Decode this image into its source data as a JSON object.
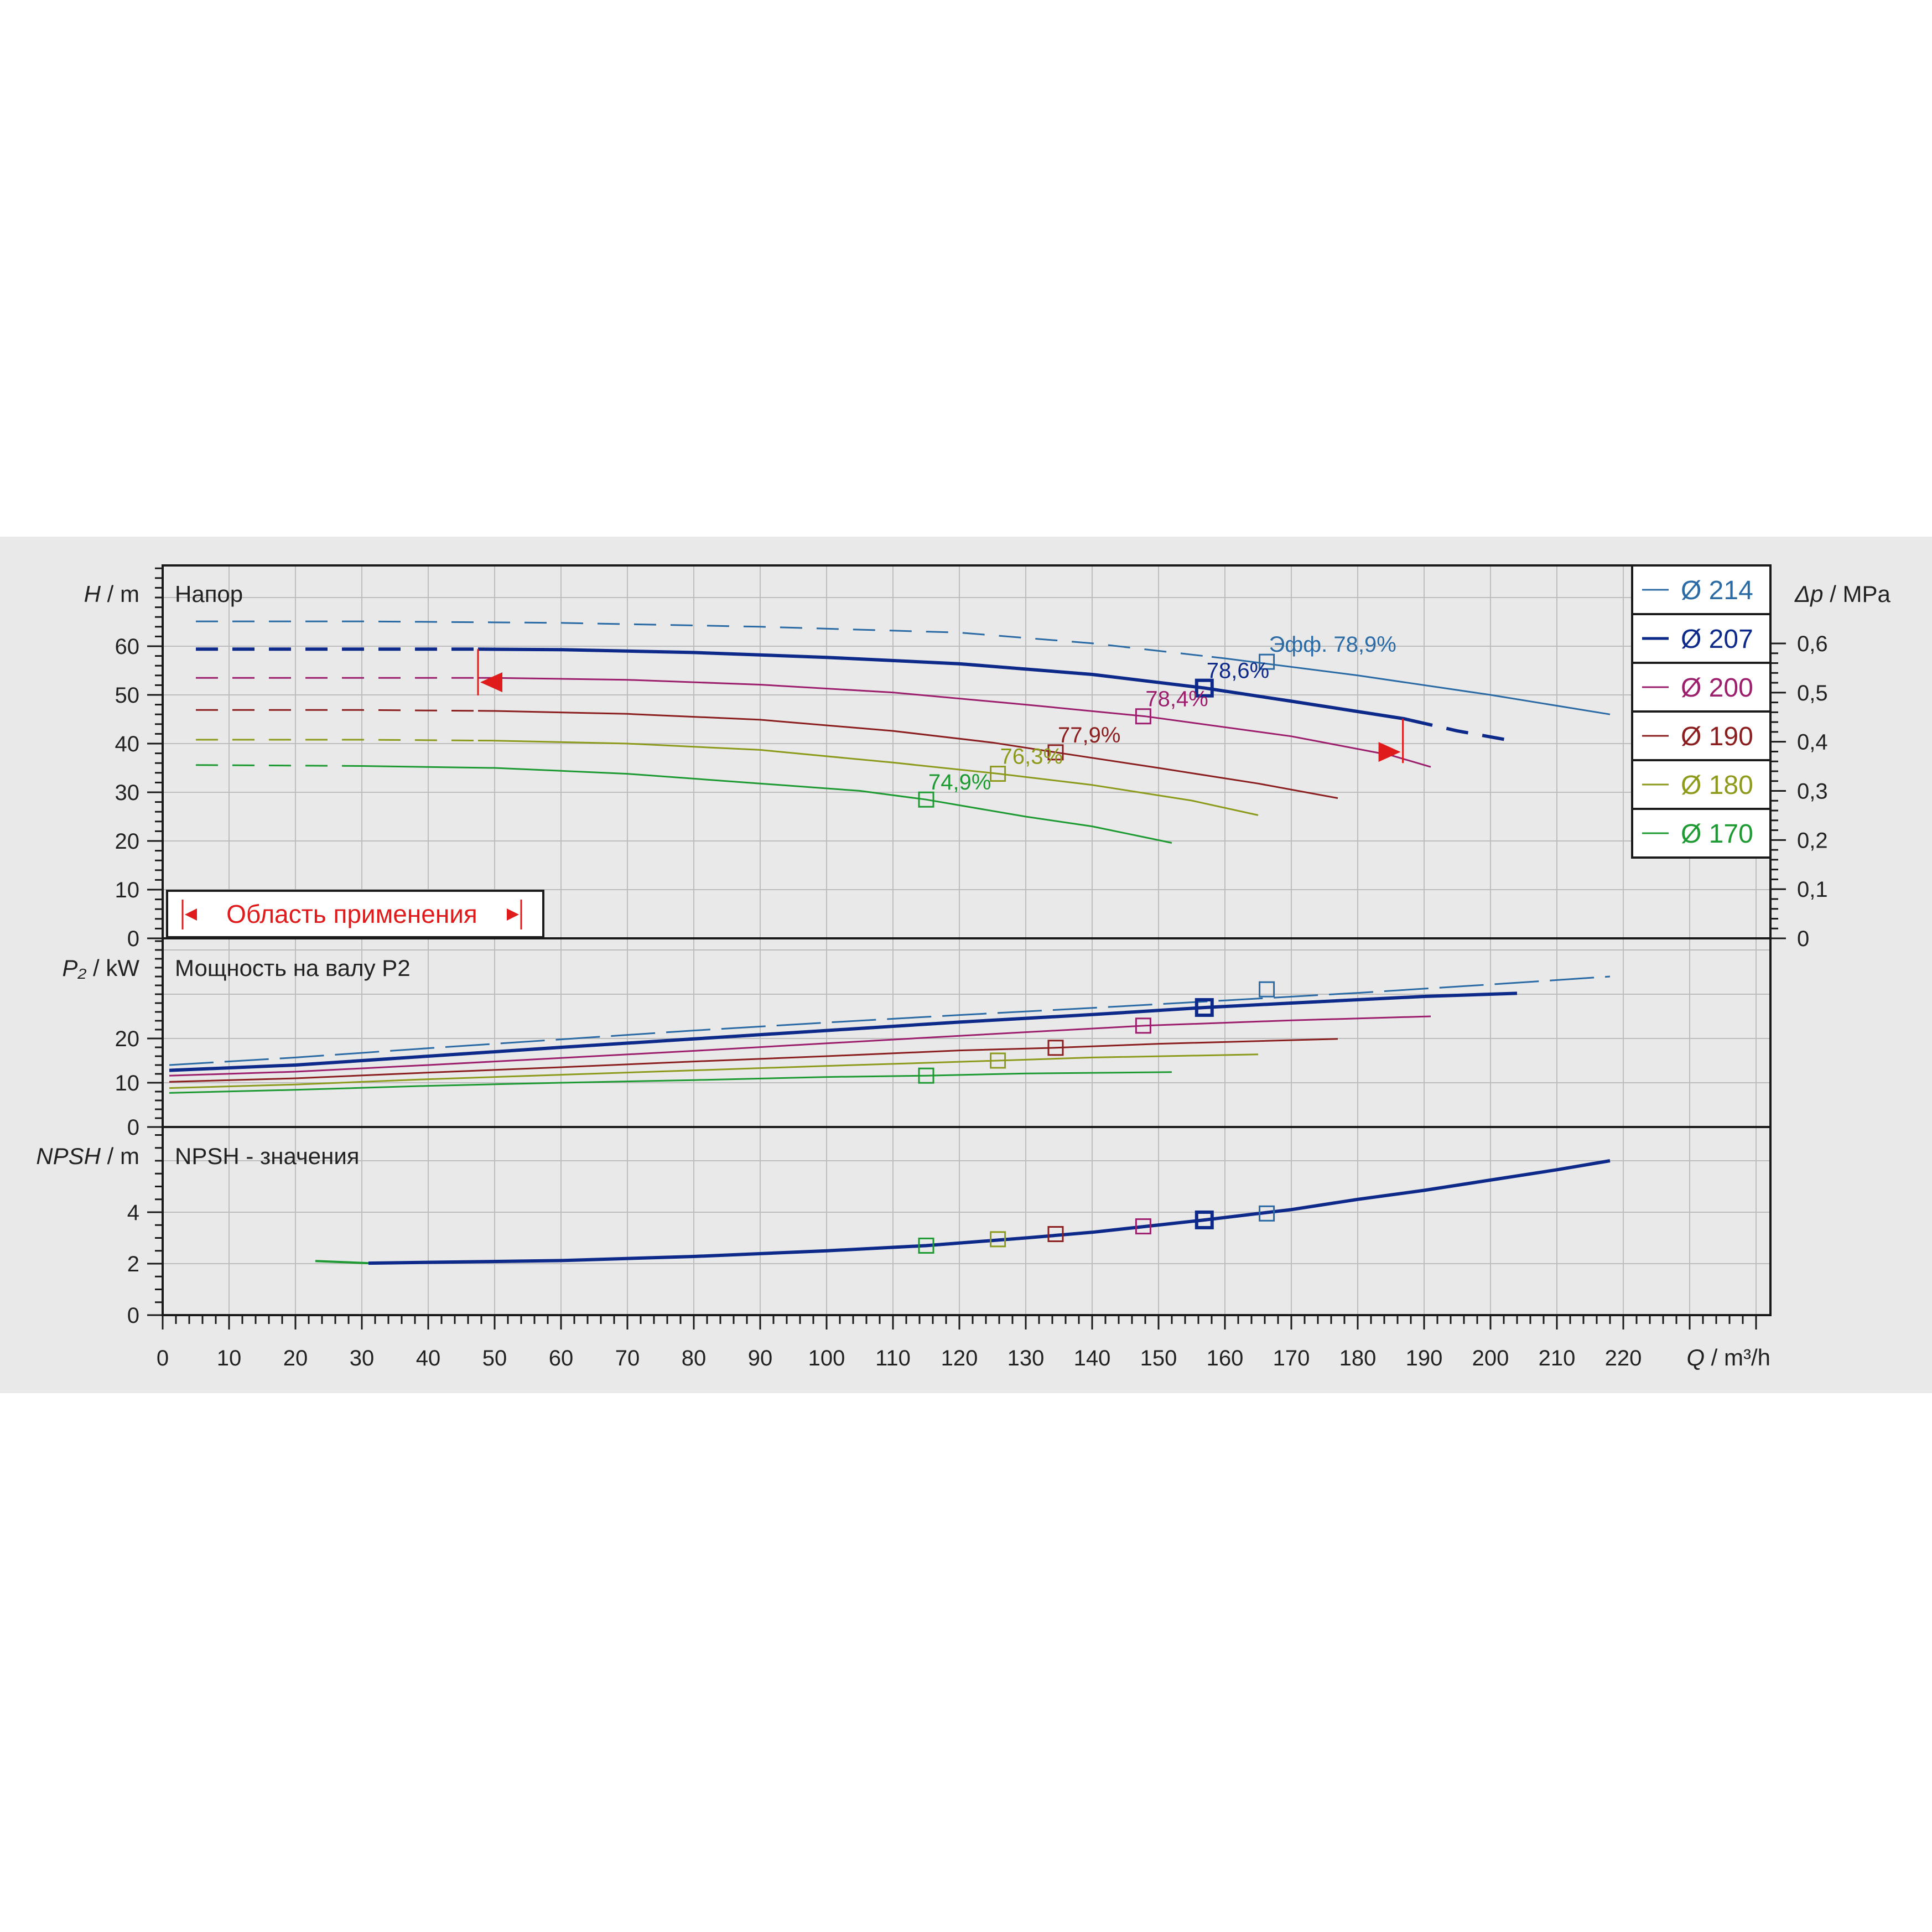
{
  "chart_data": {
    "type": "line",
    "x_axis": {
      "label_symbol": "Q",
      "label_unit": " / m³/h",
      "range": [
        0,
        240
      ],
      "ticks": [
        0,
        10,
        20,
        30,
        40,
        50,
        60,
        70,
        80,
        90,
        100,
        110,
        120,
        130,
        140,
        150,
        160,
        170,
        180,
        190,
        200,
        210,
        220
      ]
    },
    "legend": {
      "placement": "top-right",
      "items": [
        {
          "label": "Ø 214",
          "color": "#2a6aa5"
        },
        {
          "label": "Ø 207",
          "color": "#0d2a8a"
        },
        {
          "label": "Ø 200",
          "color": "#9c1f6e"
        },
        {
          "label": "Ø 190",
          "color": "#8b1f1f"
        },
        {
          "label": "Ø 180",
          "color": "#8e9a1c"
        },
        {
          "label": "Ø 170",
          "color": "#1e9a32"
        }
      ]
    },
    "head_panel": {
      "title": "Напор",
      "y_label_symbol": "H",
      "y_label_unit": " / m",
      "y_range": [
        0,
        70
      ],
      "y_ticks": [
        0,
        10,
        20,
        30,
        40,
        50,
        60
      ],
      "right_label_symbol": "Δp",
      "right_label_unit": " / MPa",
      "right_ticks": [
        "0",
        "0,1",
        "0,2",
        "0,3",
        "0,4",
        "0,5",
        "0,6"
      ],
      "eff_prefix": "Эфф.",
      "application_area_label": "Область применения",
      "application_markers": {
        "left": {
          "q": 47.5,
          "h1": 59.4,
          "h2": 49.9
        },
        "right": {
          "q": 186.8,
          "h1": 45.1,
          "h2": 36.0
        }
      },
      "series": [
        {
          "name": "Ø 214",
          "dashed_to": 158,
          "points": [
            [
              5,
              65.1
            ],
            [
              30,
              65.1
            ],
            [
              60,
              64.8
            ],
            [
              90,
              64.0
            ],
            [
              120,
              62.8
            ],
            [
              140,
              60.6
            ],
            [
              160,
              57.5
            ],
            [
              180,
              54.0
            ],
            [
              200,
              50.0
            ],
            [
              218,
              46.0
            ]
          ],
          "bep": [
            166.3,
            56.8
          ],
          "bep_label": "78,9%"
        },
        {
          "name": "Ø 207",
          "dashed_to": 47.5,
          "dashed_after": 188,
          "points": [
            [
              5,
              59.4
            ],
            [
              30,
              59.4
            ],
            [
              47.5,
              59.4
            ],
            [
              60,
              59.3
            ],
            [
              80,
              58.7
            ],
            [
              100,
              57.7
            ],
            [
              120,
              56.4
            ],
            [
              140,
              54.2
            ],
            [
              157,
              51.4
            ],
            [
              170,
              48.7
            ],
            [
              187,
              45.1
            ],
            [
              195,
              42.6
            ],
            [
              204,
              40.4
            ]
          ],
          "bep": [
            156.9,
            51.4
          ],
          "bep_label": "78,6%"
        },
        {
          "name": "Ø 200",
          "dashed_to": 47.5,
          "points": [
            [
              5,
              53.5
            ],
            [
              30,
              53.5
            ],
            [
              50,
              53.5
            ],
            [
              70,
              53.1
            ],
            [
              90,
              52.1
            ],
            [
              110,
              50.5
            ],
            [
              130,
              48.0
            ],
            [
              148,
              45.6
            ],
            [
              170,
              41.5
            ],
            [
              185,
              37.6
            ],
            [
              191,
              35.2
            ]
          ],
          "bep": [
            147.7,
            45.6
          ],
          "bep_label": "78,4%"
        },
        {
          "name": "Ø 190",
          "dashed_to": 47.5,
          "points": [
            [
              5,
              46.9
            ],
            [
              30,
              46.9
            ],
            [
              50,
              46.7
            ],
            [
              70,
              46.1
            ],
            [
              90,
              44.9
            ],
            [
              110,
              42.6
            ],
            [
              125,
              40.2
            ],
            [
              134.5,
              38.2
            ],
            [
              150,
              35.0
            ],
            [
              165,
              31.8
            ],
            [
              177,
              28.8
            ]
          ],
          "bep": [
            134.5,
            38.2
          ],
          "bep_label": "77,9%"
        },
        {
          "name": "Ø 180",
          "dashed_to": 47.5,
          "points": [
            [
              5,
              40.8
            ],
            [
              30,
              40.8
            ],
            [
              50,
              40.6
            ],
            [
              70,
              40.0
            ],
            [
              90,
              38.7
            ],
            [
              110,
              36.1
            ],
            [
              126,
              33.8
            ],
            [
              140,
              31.5
            ],
            [
              155,
              28.3
            ],
            [
              165,
              25.3
            ]
          ],
          "bep": [
            125.8,
            33.8
          ],
          "bep_label": "76,3%"
        },
        {
          "name": "Ø 170",
          "dashed_to": 30,
          "points": [
            [
              5,
              35.6
            ],
            [
              30,
              35.4
            ],
            [
              50,
              35.0
            ],
            [
              70,
              33.8
            ],
            [
              90,
              31.8
            ],
            [
              105,
              30.3
            ],
            [
              115,
              28.5
            ],
            [
              130,
              25.0
            ],
            [
              140,
              23.0
            ],
            [
              152,
              19.6
            ]
          ],
          "bep": [
            115.0,
            28.5
          ],
          "bep_label": "74,9%"
        }
      ]
    },
    "power_panel": {
      "title": "Мощность на валу P2",
      "y_label_symbol": "P₂",
      "y_label_unit": " / kW",
      "y_range": [
        0,
        40
      ],
      "y_ticks": [
        0,
        10,
        20
      ],
      "series": [
        {
          "name": "Ø 214",
          "points": [
            [
              1,
              14.0
            ],
            [
              20,
              15.7
            ],
            [
              40,
              17.8
            ],
            [
              60,
              19.8
            ],
            [
              80,
              21.8
            ],
            [
              100,
              23.6
            ],
            [
              120,
              25.3
            ],
            [
              140,
              26.9
            ],
            [
              160,
              28.6
            ],
            [
              180,
              30.3
            ],
            [
              200,
              32.2
            ],
            [
              218,
              34.0
            ]
          ],
          "bep": [
            166.3,
            31.1
          ]
        },
        {
          "name": "Ø 207",
          "points": [
            [
              1,
              12.8
            ],
            [
              20,
              14.0
            ],
            [
              40,
              16.0
            ],
            [
              60,
              18.0
            ],
            [
              80,
              19.9
            ],
            [
              100,
              21.8
            ],
            [
              120,
              23.7
            ],
            [
              140,
              25.4
            ],
            [
              157,
              27.0
            ],
            [
              170,
              28.0
            ],
            [
              190,
              29.5
            ],
            [
              204,
              30.2
            ]
          ],
          "bep": [
            156.9,
            27.0
          ]
        },
        {
          "name": "Ø 200",
          "points": [
            [
              1,
              11.6
            ],
            [
              20,
              12.5
            ],
            [
              40,
              14.0
            ],
            [
              60,
              15.6
            ],
            [
              80,
              17.2
            ],
            [
              100,
              18.9
            ],
            [
              120,
              20.6
            ],
            [
              148,
              22.9
            ],
            [
              170,
              24.1
            ],
            [
              191,
              25.0
            ]
          ],
          "bep": [
            147.7,
            22.9
          ]
        },
        {
          "name": "Ø 190",
          "points": [
            [
              1,
              10.2
            ],
            [
              20,
              11.0
            ],
            [
              40,
              12.3
            ],
            [
              60,
              13.5
            ],
            [
              80,
              14.8
            ],
            [
              100,
              16.0
            ],
            [
              120,
              17.3
            ],
            [
              134.5,
              17.9
            ],
            [
              150,
              18.8
            ],
            [
              177,
              19.9
            ]
          ],
          "bep": [
            134.5,
            17.9
          ]
        },
        {
          "name": "Ø 180",
          "points": [
            [
              1,
              8.8
            ],
            [
              20,
              9.6
            ],
            [
              40,
              10.8
            ],
            [
              60,
              11.8
            ],
            [
              80,
              12.8
            ],
            [
              100,
              13.8
            ],
            [
              125.8,
              15.0
            ],
            [
              140,
              15.7
            ],
            [
              165,
              16.4
            ]
          ],
          "bep": [
            125.8,
            15.0
          ]
        },
        {
          "name": "Ø 170",
          "points": [
            [
              1,
              7.7
            ],
            [
              20,
              8.4
            ],
            [
              40,
              9.3
            ],
            [
              60,
              10.0
            ],
            [
              80,
              10.6
            ],
            [
              100,
              11.3
            ],
            [
              115,
              11.6
            ],
            [
              130,
              12.1
            ],
            [
              152,
              12.4
            ]
          ],
          "bep": [
            115.0,
            11.6
          ]
        }
      ]
    },
    "npsh_panel": {
      "title": "NPSH - значения",
      "y_label_symbol": "NPSH",
      "y_label_unit": " / m",
      "y_range": [
        0,
        6
      ],
      "y_ticks": [
        0,
        2,
        4
      ],
      "curve": {
        "name": "Ø 207",
        "points": [
          [
            31,
            2.02
          ],
          [
            60,
            2.12
          ],
          [
            80,
            2.28
          ],
          [
            100,
            2.5
          ],
          [
            115,
            2.7
          ],
          [
            130,
            3.0
          ],
          [
            140,
            3.22
          ],
          [
            157,
            3.7
          ],
          [
            170,
            4.1
          ],
          [
            180,
            4.5
          ],
          [
            190,
            4.85
          ],
          [
            200,
            5.25
          ],
          [
            210,
            5.65
          ],
          [
            218,
            6.0
          ]
        ]
      },
      "start_segment": {
        "points": [
          [
            23,
            2.1
          ],
          [
            31,
            2.02
          ]
        ],
        "color": "#1e9a32"
      },
      "markers": [
        {
          "name": "Ø 170",
          "q": 115.0,
          "v": 2.7
        },
        {
          "name": "Ø 180",
          "q": 125.8,
          "v": 2.95
        },
        {
          "name": "Ø 190",
          "q": 134.5,
          "v": 3.15
        },
        {
          "name": "Ø 200",
          "q": 147.7,
          "v": 3.45
        },
        {
          "name": "Ø 207",
          "q": 156.9,
          "v": 3.7
        },
        {
          "name": "Ø 214",
          "q": 166.3,
          "v": 3.95
        }
      ]
    }
  }
}
